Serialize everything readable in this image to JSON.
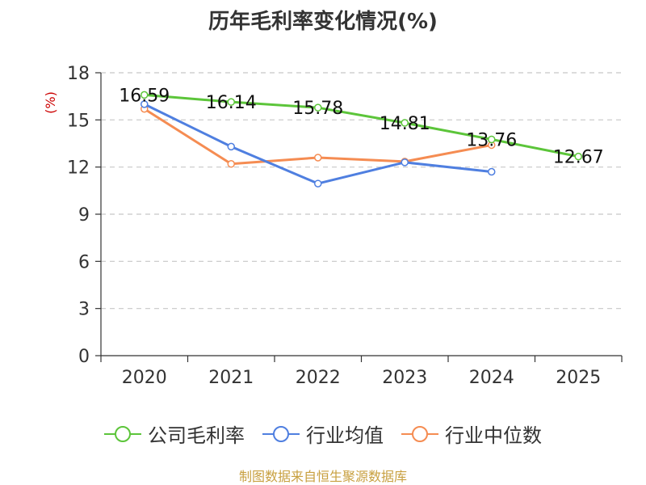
{
  "chart_data": {
    "type": "line",
    "title": "历年毛利率变化情况(%)",
    "ylabel": "(%)",
    "xlabel": "",
    "categories": [
      "2020",
      "2021",
      "2022",
      "2023",
      "2024",
      "2025"
    ],
    "ylim": [
      0,
      18
    ],
    "yticks": [
      0,
      3,
      6,
      9,
      12,
      15,
      18
    ],
    "grid": true,
    "legend_position": "bottom",
    "series": [
      {
        "name": "公司毛利率",
        "color": "#5cc53a",
        "values": [
          16.59,
          16.14,
          15.78,
          14.81,
          13.76,
          12.67
        ],
        "labels": [
          "16.59",
          "16.14",
          "15.78",
          "14.81",
          "13.76",
          "12.67"
        ]
      },
      {
        "name": "行业均值",
        "color": "#4f7fe0",
        "values": [
          16.0,
          13.3,
          10.95,
          12.3,
          11.7,
          null
        ]
      },
      {
        "name": "行业中位数",
        "color": "#f58c52",
        "values": [
          15.7,
          12.2,
          12.6,
          12.35,
          13.4,
          null
        ]
      }
    ],
    "source": "制图数据来自恒生聚源数据库"
  }
}
